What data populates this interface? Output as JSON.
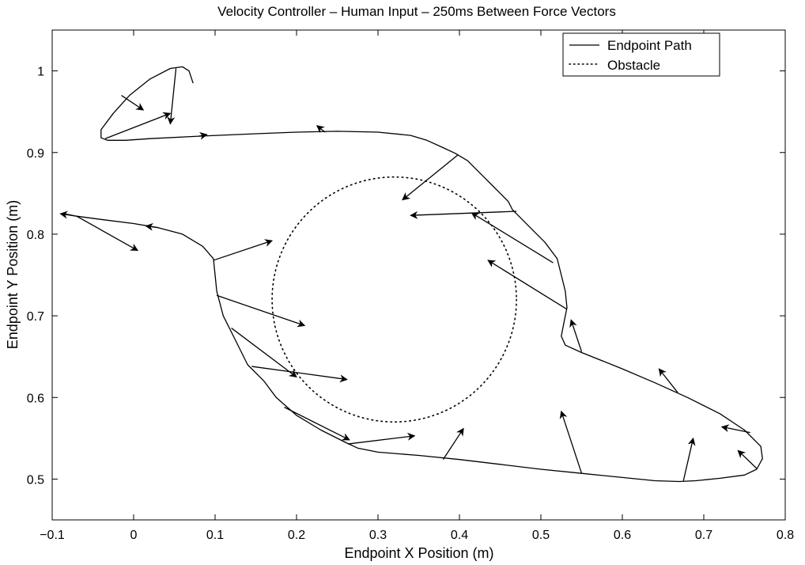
{
  "chart_data": {
    "type": "line",
    "title": "Velocity Controller – Human Input – 250ms Between Force Vectors",
    "xlabel": "Endpoint X Position (m)",
    "ylabel": "Endpoint Y Position (m)",
    "xlim": [
      -0.1,
      0.8
    ],
    "ylim": [
      0.45,
      1.05
    ],
    "xticks": [
      -0.1,
      0,
      0.1,
      0.2,
      0.3,
      0.4,
      0.5,
      0.6,
      0.7,
      0.8
    ],
    "xtick_labels": [
      "−0.1",
      "0",
      "0.1",
      "0.2",
      "0.3",
      "0.4",
      "0.5",
      "0.6",
      "0.7",
      "0.8"
    ],
    "yticks": [
      0.5,
      0.6,
      0.7,
      0.8,
      0.9,
      1.0
    ],
    "ytick_labels": [
      "0.5",
      "0.6",
      "0.7",
      "0.8",
      "0.9",
      "1"
    ],
    "grid": false,
    "legend": {
      "position": "top-right",
      "entries": [
        {
          "label": "Endpoint Path",
          "style": "solid"
        },
        {
          "label": "Obstacle",
          "style": "dotted"
        }
      ]
    },
    "obstacle": {
      "center": [
        0.32,
        0.72
      ],
      "radius": 0.15
    },
    "path": [
      [
        0.073,
        0.985
      ],
      [
        0.068,
        1.0
      ],
      [
        0.06,
        1.005
      ],
      [
        0.045,
        1.003
      ],
      [
        0.02,
        0.99
      ],
      [
        -0.005,
        0.97
      ],
      [
        -0.025,
        0.948
      ],
      [
        -0.04,
        0.928
      ],
      [
        -0.04,
        0.918
      ],
      [
        -0.032,
        0.915
      ],
      [
        -0.01,
        0.915
      ],
      [
        0.02,
        0.917
      ],
      [
        0.08,
        0.92
      ],
      [
        0.15,
        0.923
      ],
      [
        0.2,
        0.925
      ],
      [
        0.25,
        0.926
      ],
      [
        0.3,
        0.925
      ],
      [
        0.34,
        0.921
      ],
      [
        0.36,
        0.915
      ],
      [
        0.38,
        0.906
      ],
      [
        0.395,
        0.899
      ],
      [
        0.41,
        0.89
      ],
      [
        0.42,
        0.88
      ],
      [
        0.43,
        0.87
      ],
      [
        0.44,
        0.86
      ],
      [
        0.45,
        0.85
      ],
      [
        0.46,
        0.84
      ],
      [
        0.465,
        0.83
      ],
      [
        0.475,
        0.82
      ],
      [
        0.49,
        0.805
      ],
      [
        0.505,
        0.79
      ],
      [
        0.52,
        0.77
      ],
      [
        0.525,
        0.75
      ],
      [
        0.53,
        0.73
      ],
      [
        0.532,
        0.71
      ],
      [
        0.528,
        0.69
      ],
      [
        0.525,
        0.675
      ],
      [
        0.53,
        0.664
      ],
      [
        0.55,
        0.655
      ],
      [
        0.6,
        0.635
      ],
      [
        0.64,
        0.618
      ],
      [
        0.68,
        0.6
      ],
      [
        0.72,
        0.58
      ],
      [
        0.75,
        0.56
      ],
      [
        0.77,
        0.54
      ],
      [
        0.772,
        0.525
      ],
      [
        0.765,
        0.512
      ],
      [
        0.75,
        0.505
      ],
      [
        0.72,
        0.501
      ],
      [
        0.69,
        0.498
      ],
      [
        0.67,
        0.497
      ],
      [
        0.64,
        0.498
      ],
      [
        0.6,
        0.502
      ],
      [
        0.55,
        0.507
      ],
      [
        0.5,
        0.512
      ],
      [
        0.45,
        0.518
      ],
      [
        0.4,
        0.524
      ],
      [
        0.35,
        0.529
      ],
      [
        0.3,
        0.533
      ],
      [
        0.275,
        0.538
      ],
      [
        0.26,
        0.545
      ],
      [
        0.23,
        0.56
      ],
      [
        0.2,
        0.578
      ],
      [
        0.175,
        0.6
      ],
      [
        0.16,
        0.62
      ],
      [
        0.14,
        0.64
      ],
      [
        0.125,
        0.67
      ],
      [
        0.11,
        0.7
      ],
      [
        0.102,
        0.73
      ],
      [
        0.1,
        0.75
      ],
      [
        0.098,
        0.77
      ],
      [
        0.085,
        0.785
      ],
      [
        0.06,
        0.8
      ],
      [
        0.03,
        0.808
      ],
      [
        0.0,
        0.813
      ],
      [
        -0.04,
        0.818
      ],
      [
        -0.07,
        0.822
      ],
      [
        -0.085,
        0.825
      ],
      [
        -0.09,
        0.825
      ]
    ],
    "force_vectors": [
      {
        "from": [
          -0.07,
          0.822
        ],
        "to": [
          -0.09,
          0.825
        ]
      },
      {
        "from": [
          -0.07,
          0.822
        ],
        "to": [
          0.005,
          0.78
        ]
      },
      {
        "from": [
          0.03,
          0.808
        ],
        "to": [
          0.015,
          0.81
        ]
      },
      {
        "from": [
          0.098,
          0.768
        ],
        "to": [
          0.17,
          0.792
        ]
      },
      {
        "from": [
          -0.015,
          0.97
        ],
        "to": [
          0.012,
          0.952
        ]
      },
      {
        "from": [
          -0.035,
          0.917
        ],
        "to": [
          0.045,
          0.948
        ]
      },
      {
        "from": [
          0.052,
          1.003
        ],
        "to": [
          0.045,
          0.935
        ]
      },
      {
        "from": [
          0.08,
          0.92
        ],
        "to": [
          0.09,
          0.922
        ]
      },
      {
        "from": [
          0.235,
          0.925
        ],
        "to": [
          0.225,
          0.933
        ]
      },
      {
        "from": [
          0.398,
          0.897
        ],
        "to": [
          0.33,
          0.842
        ]
      },
      {
        "from": [
          0.47,
          0.828
        ],
        "to": [
          0.34,
          0.823
        ]
      },
      {
        "from": [
          0.515,
          0.765
        ],
        "to": [
          0.415,
          0.826
        ]
      },
      {
        "from": [
          0.532,
          0.708
        ],
        "to": [
          0.435,
          0.768
        ]
      },
      {
        "from": [
          0.102,
          0.725
        ],
        "to": [
          0.21,
          0.688
        ]
      },
      {
        "from": [
          0.12,
          0.685
        ],
        "to": [
          0.2,
          0.625
        ]
      },
      {
        "from": [
          0.145,
          0.638
        ],
        "to": [
          0.262,
          0.622
        ]
      },
      {
        "from": [
          0.185,
          0.588
        ],
        "to": [
          0.265,
          0.548
        ]
      },
      {
        "from": [
          0.263,
          0.543
        ],
        "to": [
          0.345,
          0.553
        ]
      },
      {
        "from": [
          0.38,
          0.524
        ],
        "to": [
          0.405,
          0.562
        ]
      },
      {
        "from": [
          0.55,
          0.656
        ],
        "to": [
          0.537,
          0.695
        ]
      },
      {
        "from": [
          0.55,
          0.507
        ],
        "to": [
          0.525,
          0.583
        ]
      },
      {
        "from": [
          0.668,
          0.606
        ],
        "to": [
          0.645,
          0.635
        ]
      },
      {
        "from": [
          0.675,
          0.498
        ],
        "to": [
          0.687,
          0.55
        ]
      },
      {
        "from": [
          0.757,
          0.557
        ],
        "to": [
          0.722,
          0.564
        ]
      },
      {
        "from": [
          0.765,
          0.513
        ],
        "to": [
          0.742,
          0.535
        ]
      }
    ]
  }
}
